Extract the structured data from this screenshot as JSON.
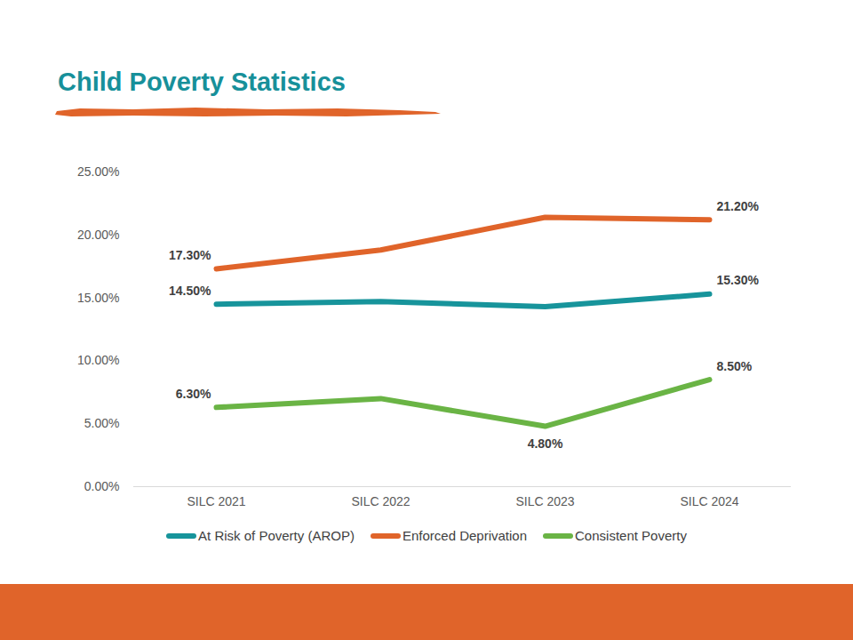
{
  "chart_data": {
    "type": "line",
    "title": "Child Poverty Statistics",
    "categories": [
      "SILC 2021",
      "SILC 2022",
      "SILC 2023",
      "SILC 2024"
    ],
    "series": [
      {
        "name": "At Risk of Poverty (AROP)",
        "color": "#17949b",
        "values": [
          14.5,
          14.7,
          14.3,
          15.3
        ],
        "value_labels": [
          "14.50%",
          null,
          null,
          "15.30%"
        ]
      },
      {
        "name": "Enforced Deprivation",
        "color": "#e0642a",
        "values": [
          17.3,
          18.8,
          21.4,
          21.2
        ],
        "value_labels": [
          "17.30%",
          null,
          null,
          "21.20%"
        ]
      },
      {
        "name": "Consistent Poverty",
        "color": "#6ab445",
        "values": [
          6.3,
          7.0,
          4.8,
          8.5
        ],
        "value_labels": [
          "6.30%",
          null,
          "4.80%",
          "8.50%"
        ]
      }
    ],
    "ylim": [
      0,
      25
    ],
    "yticks": [
      {
        "value": 0,
        "label": "0.00%"
      },
      {
        "value": 5,
        "label": "5.00%"
      },
      {
        "value": 10,
        "label": "10.00%"
      },
      {
        "value": 15,
        "label": "15.00%"
      },
      {
        "value": 20,
        "label": "20.00%"
      },
      {
        "value": 25,
        "label": "25.00%"
      }
    ],
    "grid": false,
    "legend": "bottom",
    "data_labels": true,
    "marker": "none",
    "line_style": "solid"
  }
}
